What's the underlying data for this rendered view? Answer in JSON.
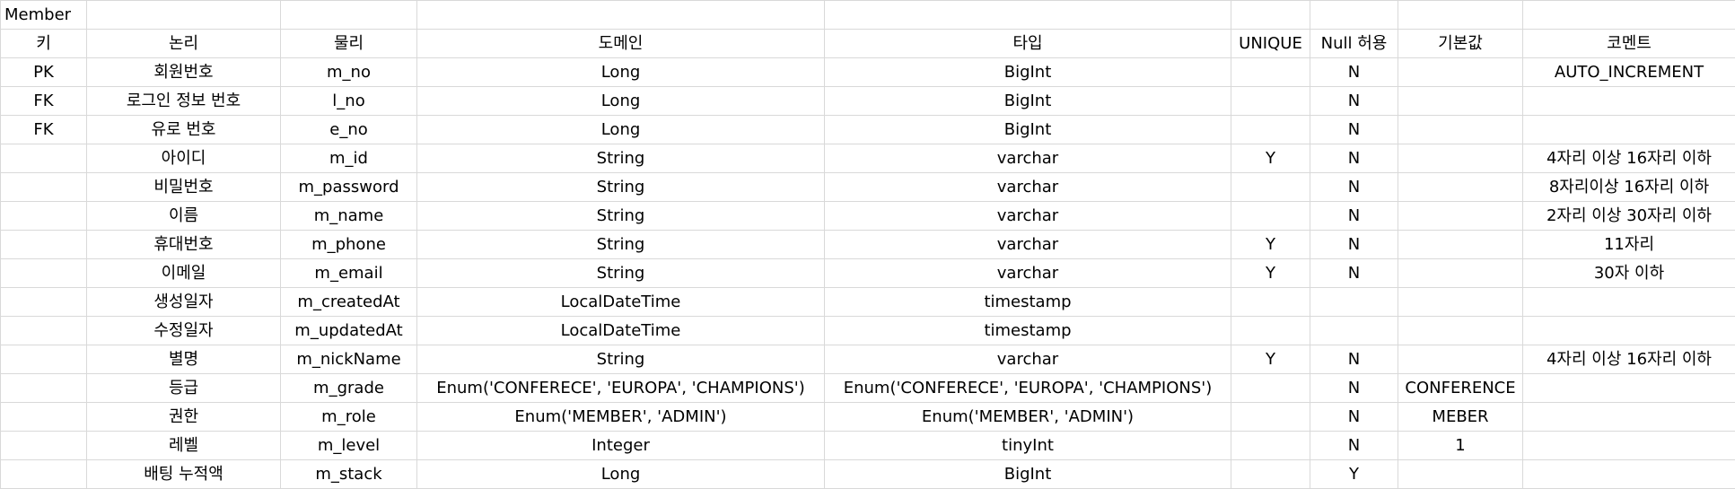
{
  "sheet_title": "Member",
  "headers": [
    "키",
    "논리",
    "물리",
    "도메인",
    "타입",
    "UNIQUE",
    "Null 허용",
    "기본값",
    "코멘트"
  ],
  "rows": [
    [
      "PK",
      "회원번호",
      "m_no",
      "Long",
      "BigInt",
      "",
      "N",
      "",
      "AUTO_INCREMENT"
    ],
    [
      "FK",
      "로그인 정보 번호",
      "l_no",
      "Long",
      "BigInt",
      "",
      "N",
      "",
      ""
    ],
    [
      "FK",
      "유로 번호",
      "e_no",
      "Long",
      "BigInt",
      "",
      "N",
      "",
      ""
    ],
    [
      "",
      "아이디",
      "m_id",
      "String",
      "varchar",
      "Y",
      "N",
      "",
      "4자리 이상 16자리 이하"
    ],
    [
      "",
      "비밀번호",
      "m_password",
      "String",
      "varchar",
      "",
      "N",
      "",
      "8자리이상 16자리 이하"
    ],
    [
      "",
      "이름",
      "m_name",
      "String",
      "varchar",
      "",
      "N",
      "",
      "2자리 이상 30자리 이하"
    ],
    [
      "",
      "휴대번호",
      "m_phone",
      "String",
      "varchar",
      "Y",
      "N",
      "",
      "11자리"
    ],
    [
      "",
      "이메일",
      "m_email",
      "String",
      "varchar",
      "Y",
      "N",
      "",
      "30자 이하"
    ],
    [
      "",
      "생성일자",
      "m_createdAt",
      "LocalDateTime",
      "timestamp",
      "",
      "",
      "",
      ""
    ],
    [
      "",
      "수정일자",
      "m_updatedAt",
      "LocalDateTime",
      "timestamp",
      "",
      "",
      "",
      ""
    ],
    [
      "",
      "별명",
      "m_nickName",
      "String",
      "varchar",
      "Y",
      "N",
      "",
      "4자리 이상 16자리 이하"
    ],
    [
      "",
      "등급",
      "m_grade",
      "Enum('CONFERECE', 'EUROPA', 'CHAMPIONS')",
      "Enum('CONFERECE', 'EUROPA', 'CHAMPIONS')",
      "",
      "N",
      "CONFERENCE",
      ""
    ],
    [
      "",
      "권한",
      "m_role",
      "Enum('MEMBER', 'ADMIN')",
      "Enum('MEMBER', 'ADMIN')",
      "",
      "N",
      "MEBER",
      ""
    ],
    [
      "",
      "레벨",
      "m_level",
      "Integer",
      "tinyInt",
      "",
      "N",
      "1",
      ""
    ],
    [
      "",
      "배팅 누적액",
      "m_stack",
      "Long",
      "BigInt",
      "",
      "Y",
      "",
      ""
    ]
  ]
}
